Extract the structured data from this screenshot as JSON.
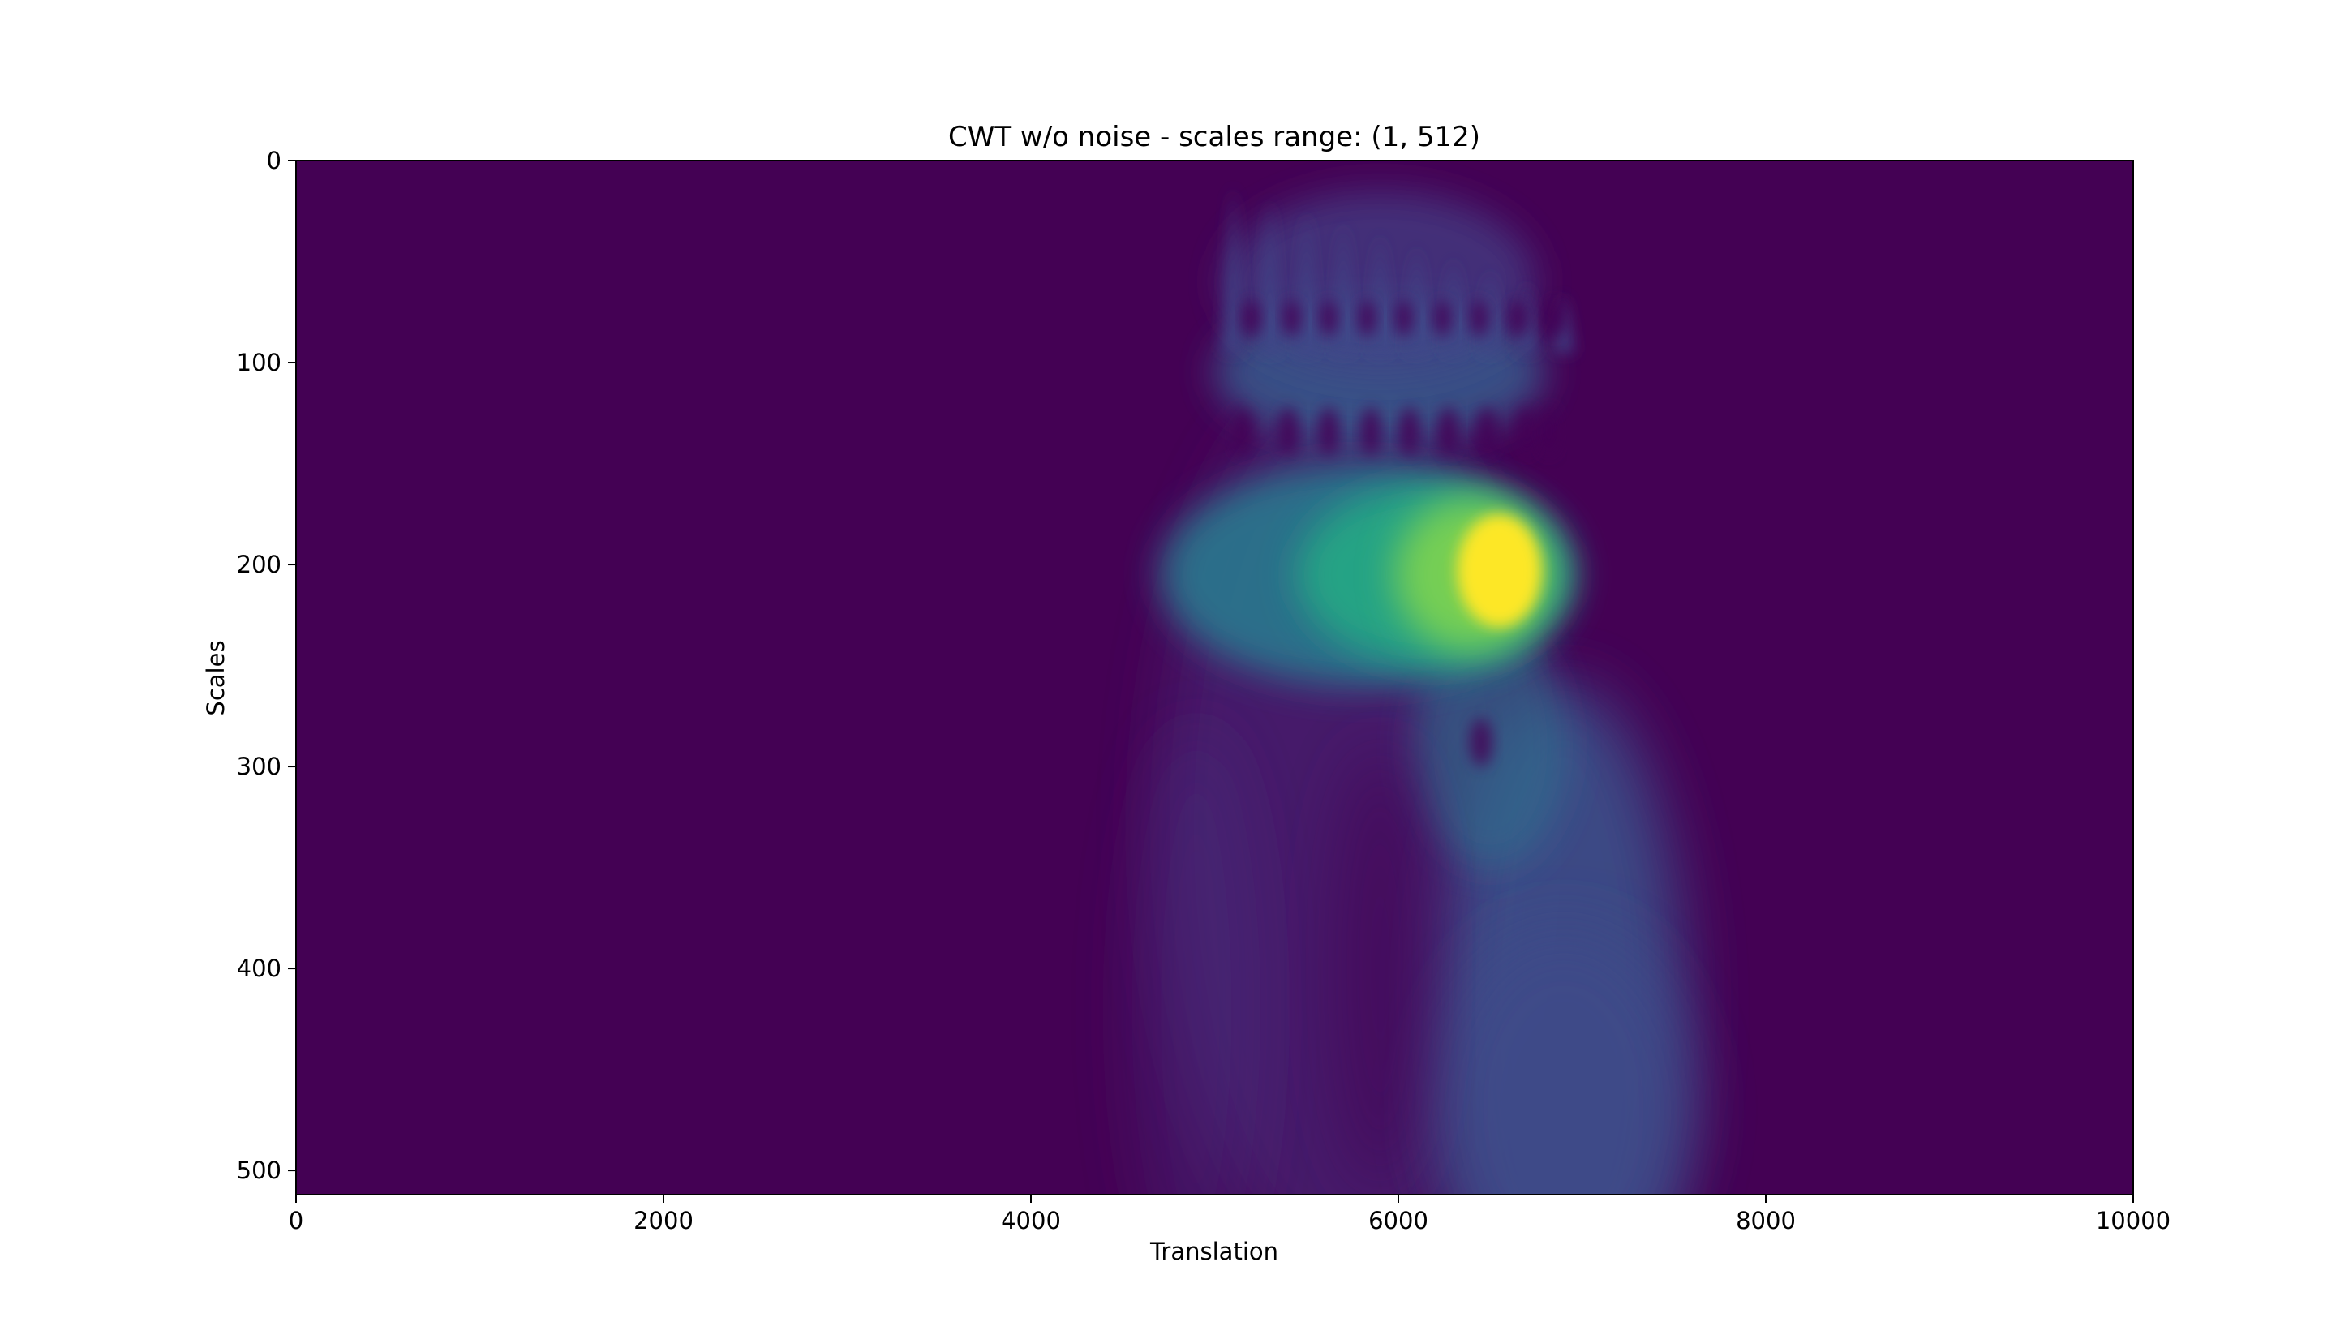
{
  "chart_data": {
    "type": "heatmap",
    "title": "CWT w/o noise - scales range: (1, 512)",
    "xlabel": "Translation",
    "ylabel": "Scales",
    "xlim": [
      0,
      10000
    ],
    "ylim": [
      512,
      0
    ],
    "y_inverted": true,
    "xticks": [
      0,
      2000,
      4000,
      6000,
      8000,
      10000
    ],
    "yticks": [
      0,
      100,
      200,
      300,
      400,
      500
    ],
    "colormap": "viridis",
    "background_color": "#440154",
    "value_range": [
      0,
      1
    ],
    "intensity_features": [
      {
        "translation": 6550,
        "scale": 203,
        "intensity": 1.0,
        "note": "peak"
      },
      {
        "translation": 6000,
        "scale": 205,
        "intensity": 0.62
      },
      {
        "translation": 5300,
        "scale": 205,
        "intensity": 0.32
      },
      {
        "translation": 6000,
        "scale": 105,
        "intensity": 0.22
      },
      {
        "translation": 6900,
        "scale": 420,
        "intensity": 0.28
      },
      {
        "translation": 6200,
        "scale": 480,
        "intensity": 0.1
      },
      {
        "translation": 5600,
        "scale": 40,
        "intensity": 0.15
      }
    ],
    "grid": false
  }
}
